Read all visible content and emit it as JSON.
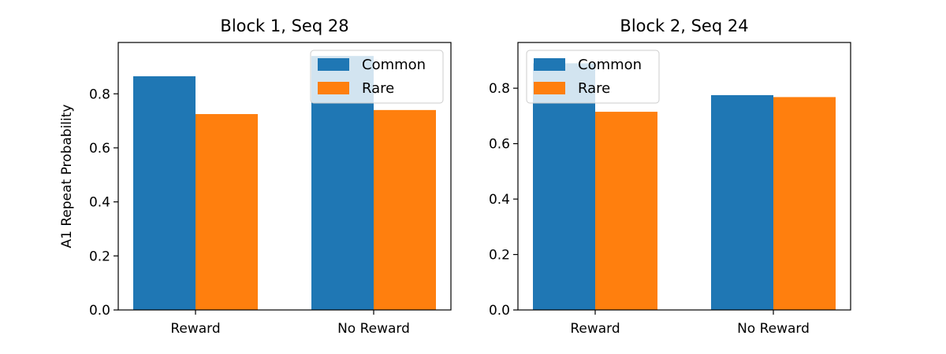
{
  "colors": {
    "Common": "#1f77b4",
    "Rare": "#ff7f0e"
  },
  "chart_data": [
    {
      "type": "bar",
      "title": "Block 1, Seq 28",
      "xlabel": "",
      "ylabel": "A1 Repeat Probability",
      "categories": [
        "Reward",
        "No Reward"
      ],
      "series": [
        {
          "name": "Common",
          "values": [
            0.865,
            0.94
          ]
        },
        {
          "name": "Rare",
          "values": [
            0.725,
            0.74
          ]
        }
      ],
      "ylim": [
        0,
        0.99
      ],
      "yticks": [
        0.0,
        0.2,
        0.4,
        0.6,
        0.8
      ],
      "ytick_labels": [
        "0.0",
        "0.2",
        "0.4",
        "0.6",
        "0.8"
      ],
      "legend": "top-right",
      "grid": false
    },
    {
      "type": "bar",
      "title": "Block 2, Seq 24",
      "xlabel": "",
      "ylabel": "",
      "categories": [
        "Reward",
        "No Reward"
      ],
      "series": [
        {
          "name": "Common",
          "values": [
            0.89,
            0.775
          ]
        },
        {
          "name": "Rare",
          "values": [
            0.715,
            0.768
          ]
        }
      ],
      "ylim": [
        0,
        0.965
      ],
      "yticks": [
        0.0,
        0.2,
        0.4,
        0.6,
        0.8
      ],
      "ytick_labels": [
        "0.0",
        "0.2",
        "0.4",
        "0.6",
        "0.8"
      ],
      "legend": "top-left",
      "grid": false
    }
  ]
}
